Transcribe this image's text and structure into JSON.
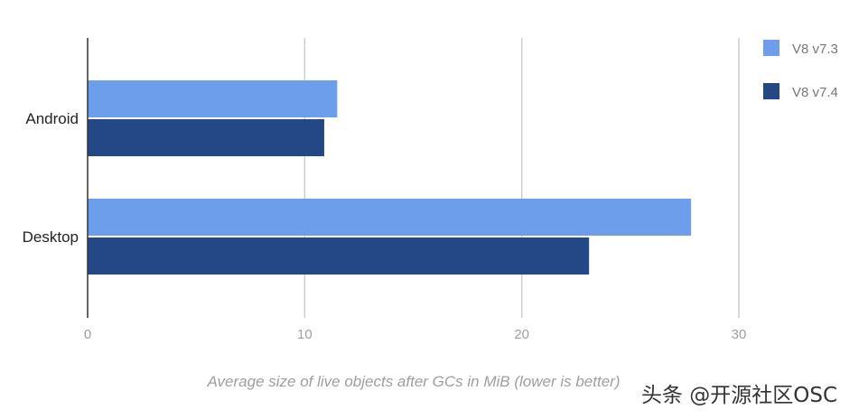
{
  "chart_data": {
    "type": "bar",
    "orientation": "horizontal",
    "categories": [
      "Android",
      "Desktop"
    ],
    "series": [
      {
        "name": "V8 v7.3",
        "values": [
          11.5,
          27.8
        ],
        "color": "#6d9eeb"
      },
      {
        "name": "V8 v7.4",
        "values": [
          10.9,
          23.1
        ],
        "color": "#244886"
      }
    ],
    "xlabel": "Average size of live objects after GCs in MiB (lower is better)",
    "ylabel": "",
    "xlim": [
      0,
      30
    ],
    "xticks": [
      "0",
      "10",
      "20",
      "30"
    ],
    "grid": true,
    "legend_position": "top-right"
  },
  "colors": {
    "gridline": "#cccccc",
    "axis": "#333333",
    "tick_label": "#9e9e9e",
    "category_label": "#222222",
    "xlabel": "#9e9e9e",
    "legend_text": "#777777"
  },
  "watermark": {
    "text": "头条 @开源社区OSC",
    "color": "#333333"
  }
}
